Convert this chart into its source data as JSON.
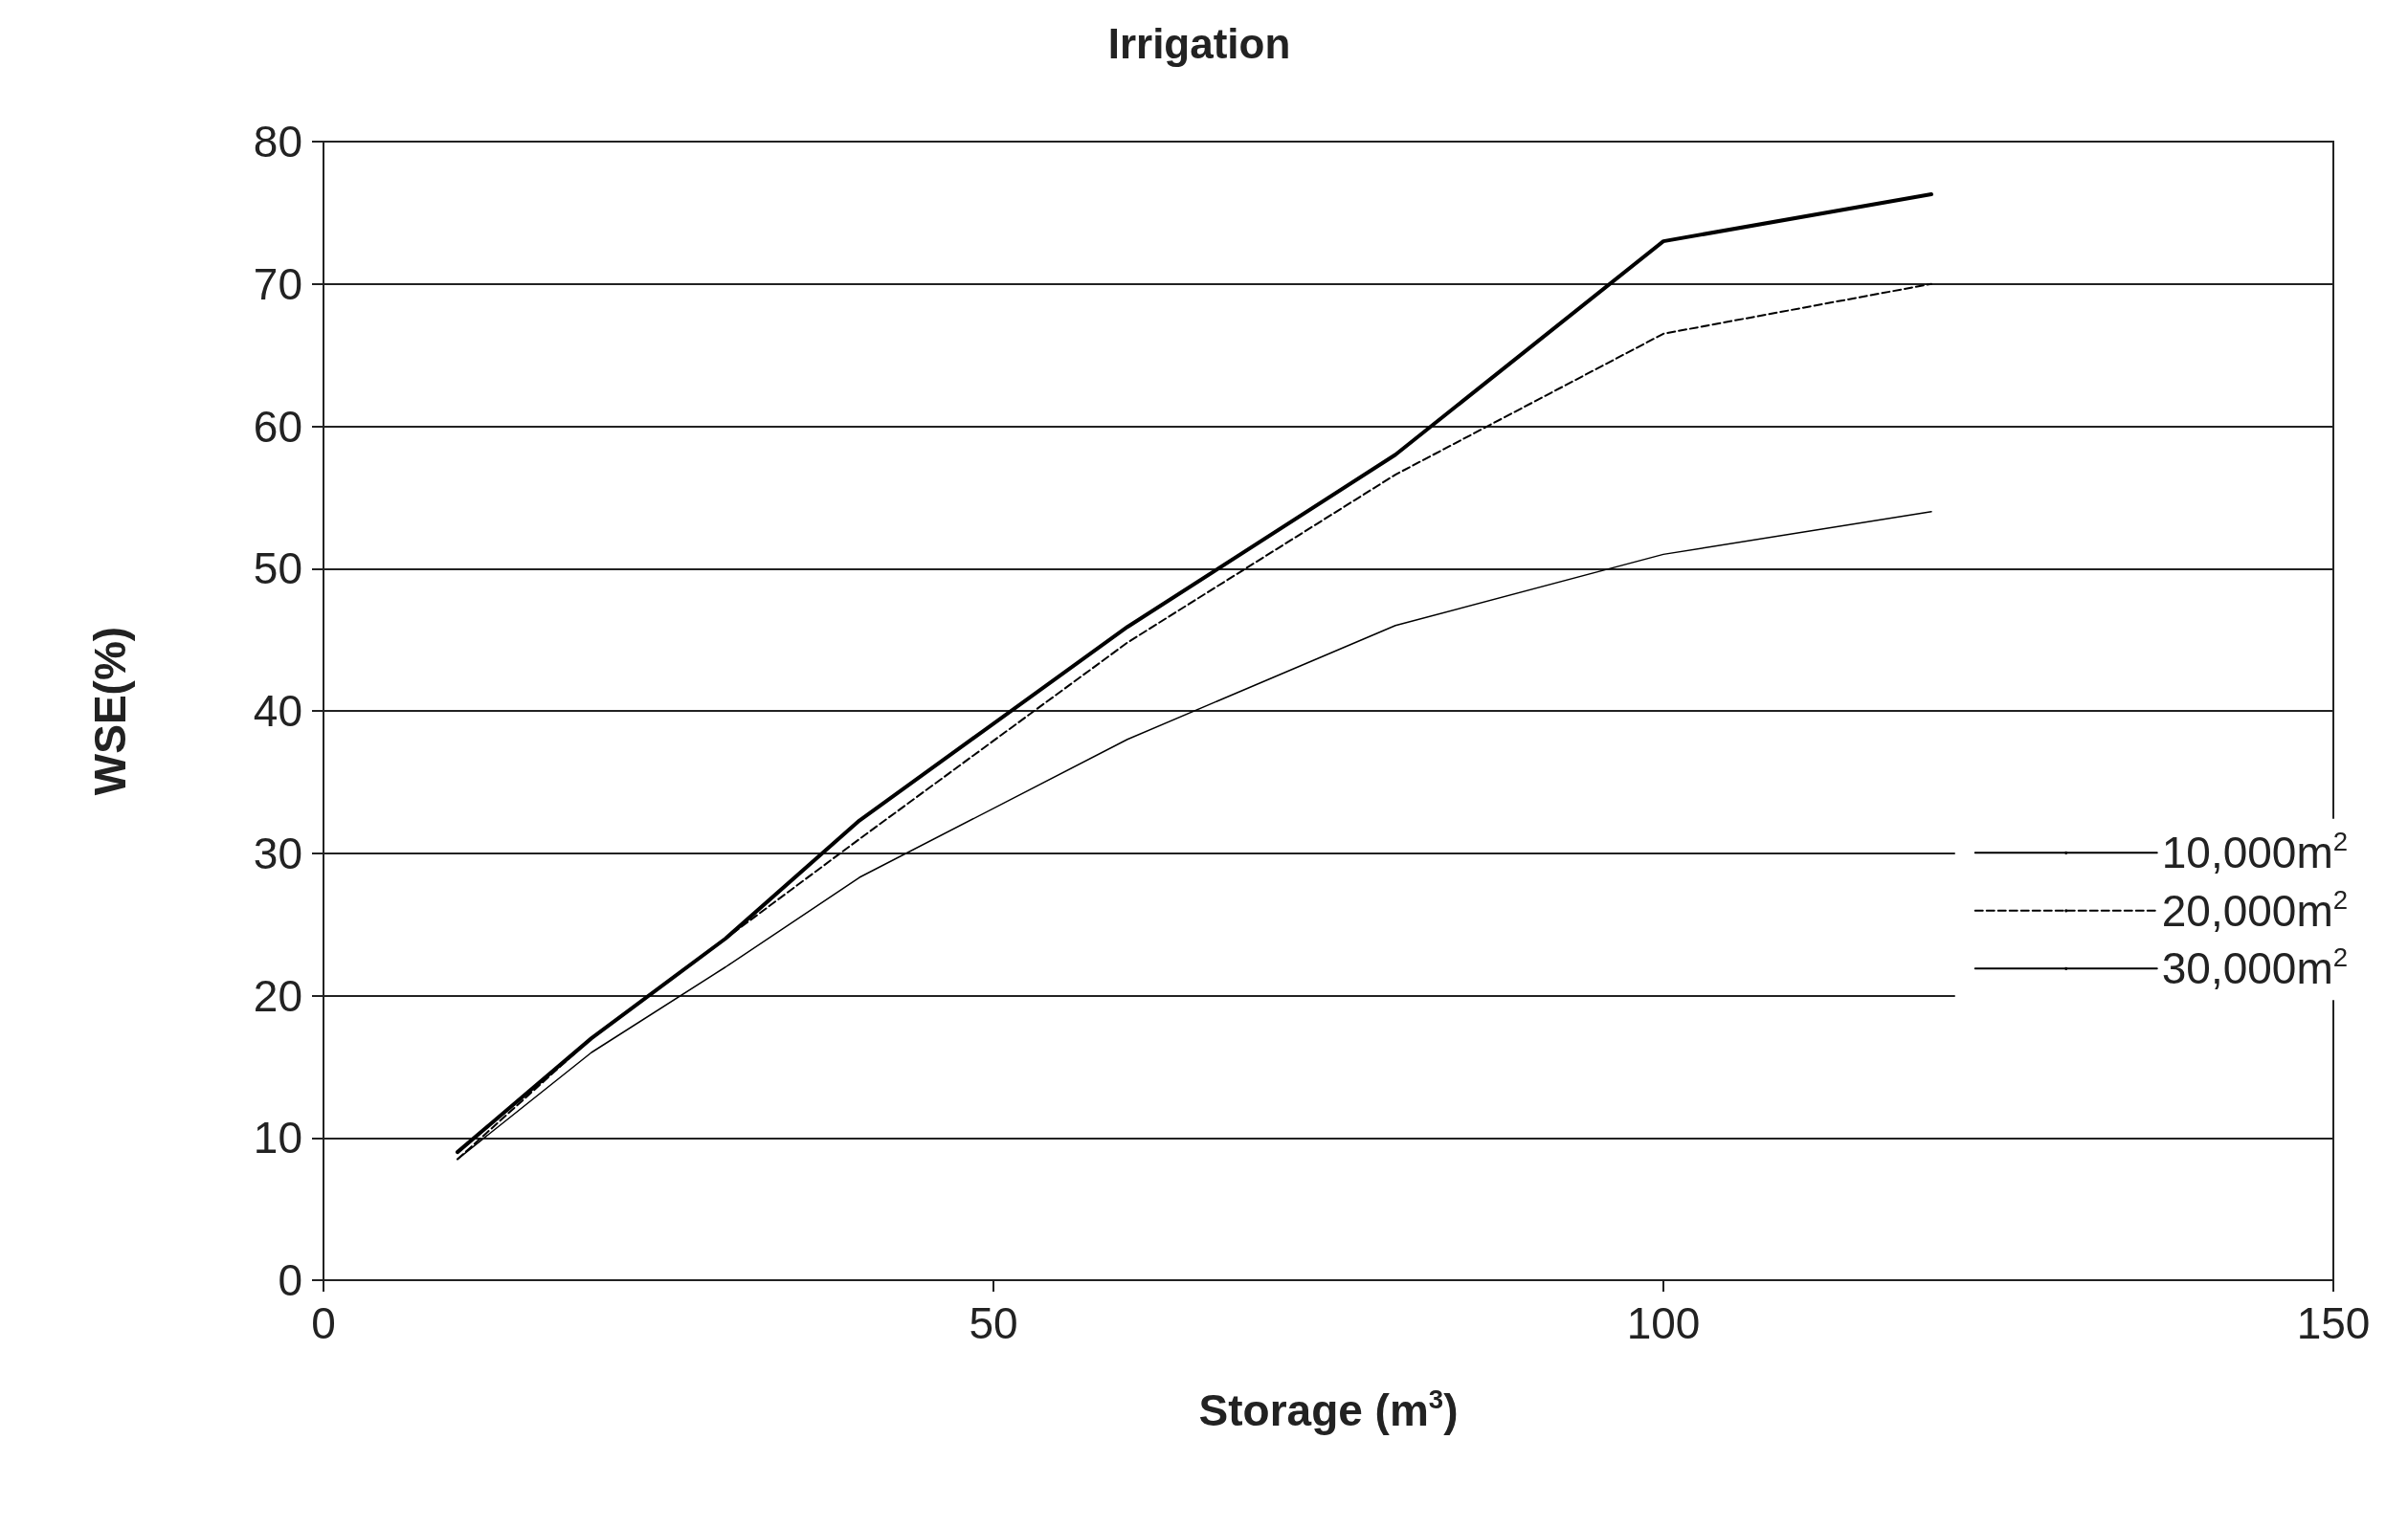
{
  "chart_data": {
    "type": "line",
    "title": "Irrigation",
    "xlabel": "Storage (m$^{3}$)",
    "ylabel": "WSE(%)",
    "x": [
      10,
      20,
      30,
      40,
      60,
      80,
      100,
      120
    ],
    "series": [
      {
        "name": "10,000m$^{2}$",
        "color": "#000000",
        "line_style": "solid",
        "values": [
          8.5,
          16,
          22,
          28.3,
          38,
          46,
          51,
          54
        ]
      },
      {
        "name": "20,000m$^{2}$",
        "color": "#000000",
        "line_style": "dashed",
        "values": [
          8.5,
          17,
          24,
          31,
          44.8,
          56.6,
          66.5,
          70
        ]
      },
      {
        "name": "30,000m$^{2}$",
        "color": "#000000",
        "line_style": "solid",
        "values": [
          9,
          17,
          24,
          32.3,
          45.9,
          58,
          73,
          76.3
        ]
      }
    ],
    "xlim": [
      0,
      150
    ],
    "xticks": [
      0,
      50,
      100,
      150
    ],
    "ylim": [
      0,
      80
    ],
    "yticks": [
      0,
      10,
      20,
      30,
      40,
      50,
      60,
      70,
      80
    ],
    "grid": "y",
    "legend": "right",
    "marker": "none"
  }
}
